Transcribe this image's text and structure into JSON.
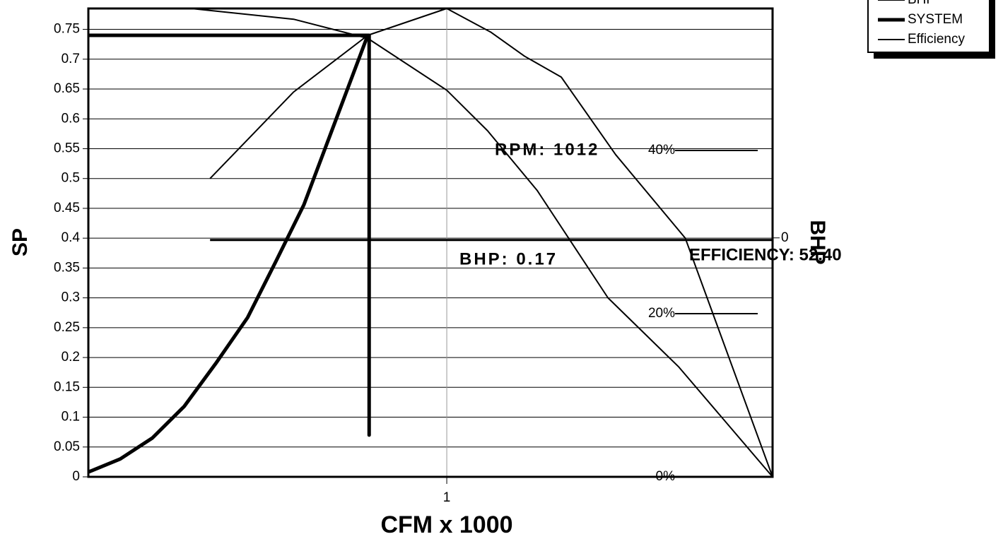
{
  "chart_data": {
    "type": "line",
    "xlabel": "CFM x 1000",
    "ylabel": "SP",
    "y2label": "BHP",
    "log_x": true,
    "grid": true,
    "xlim": [
      0.4,
      2.3
    ],
    "xticks": [
      1
    ],
    "ylim": [
      0,
      0.785
    ],
    "yticks": [
      0,
      0.05,
      0.1,
      0.15,
      0.2,
      0.25,
      0.3,
      0.35,
      0.4,
      0.45,
      0.5,
      0.55,
      0.6,
      0.65,
      0.7,
      0.75
    ],
    "y2lim": [
      -1,
      0.96
    ],
    "y2ticks": [
      0
    ],
    "y3lim": [
      0,
      57.4
    ],
    "y3ticks": [
      {
        "value": 0,
        "label": "0%"
      },
      {
        "value": 20,
        "label": "20%"
      },
      {
        "value": 40,
        "label": "40%"
      }
    ],
    "legend": "top-right",
    "series": [
      {
        "name": "BHP",
        "color": "#000",
        "width": 2,
        "x": [
          0.546,
          0.676,
          0.817,
          1.0,
          1.12,
          1.22,
          1.34,
          1.54,
          1.84,
          2.3
        ],
        "values": [
          0.5,
          0.645,
          0.74,
          0.785,
          0.745,
          0.705,
          0.67,
          0.54,
          0.4,
          0
        ]
      },
      {
        "name": "SYSTEM",
        "color": "#000",
        "width": 5,
        "x": [
          0.4,
          0.434,
          0.471,
          0.511,
          0.554,
          0.601,
          0.646,
          0.694,
          0.753,
          0.817
        ],
        "values": [
          0.008,
          0.03,
          0.065,
          0.118,
          0.19,
          0.267,
          0.361,
          0.456,
          0.598,
          0.74
        ]
      },
      {
        "name": "Efficiency",
        "color": "#000",
        "width": 2,
        "x": [
          0.52,
          0.676,
          0.817,
          1.0,
          1.11,
          1.26,
          1.51,
          1.81,
          2.3
        ],
        "values": [
          0.785,
          0.767,
          0.735,
          0.648,
          0.58,
          0.48,
          0.3,
          0.184,
          0
        ]
      }
    ],
    "operating_point": {
      "x": 0.82,
      "y": 0.74,
      "ymin": 0.07
    },
    "bhp_line": {
      "y": 0.397,
      "x": [
        0.546,
        2.3
      ]
    },
    "annotations": [
      "RPM: 1012",
      "BHP: 0.17",
      "EFFICIENCY: 52.40"
    ]
  }
}
